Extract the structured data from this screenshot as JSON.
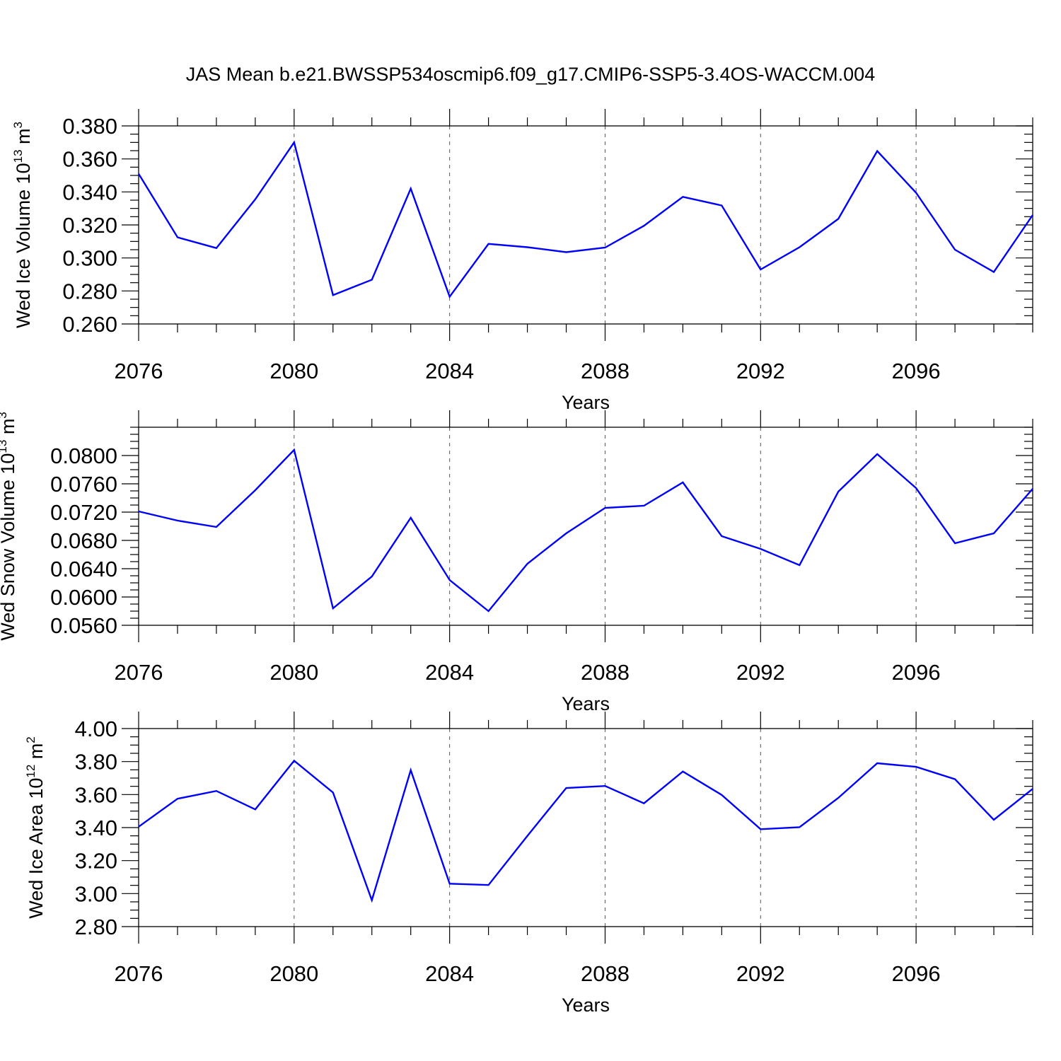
{
  "title": "JAS Mean b.e21.BWSSP534oscmip6.f09_g17.CMIP6-SSP5-3.4OS-WACCM.004",
  "colors": {
    "line": "#0000ff",
    "axis": "#000000",
    "grid": "#555555"
  },
  "chart_data": [
    {
      "type": "line",
      "title": "",
      "xlabel": "Years",
      "ylabel": {
        "main": "Wed Ice Volume 10",
        "exp": "13",
        "unit": " m",
        "unit_exp": "3"
      },
      "xlim": [
        2076,
        2099
      ],
      "ylim": [
        0.26,
        0.38
      ],
      "x_ticks": [
        "2076",
        "2080",
        "2084",
        "2088",
        "2092",
        "2096"
      ],
      "y_ticks": [
        "0.260",
        "0.280",
        "0.300",
        "0.320",
        "0.340",
        "0.360",
        "0.380"
      ],
      "x": [
        2076,
        2077,
        2078,
        2079,
        2080,
        2081,
        2082,
        2083,
        2084,
        2085,
        2086,
        2087,
        2088,
        2089,
        2090,
        2091,
        2092,
        2093,
        2094,
        2095,
        2096,
        2097,
        2098,
        2099
      ],
      "series": [
        {
          "name": "Wed Ice Volume",
          "values": [
            0.351,
            0.3125,
            0.306,
            0.3355,
            0.37,
            0.2775,
            0.2868,
            0.342,
            0.2765,
            0.3085,
            0.3065,
            0.3035,
            0.3063,
            0.3195,
            0.337,
            0.3318,
            0.293,
            0.3065,
            0.3237,
            0.3648,
            0.3395,
            0.305,
            0.2915,
            0.326
          ]
        }
      ]
    },
    {
      "type": "line",
      "title": "",
      "xlabel": "Years",
      "ylabel": {
        "main": "Wed Snow Volume 10",
        "exp": "13",
        "unit": " m",
        "unit_exp": "3"
      },
      "xlim": [
        2076,
        2099
      ],
      "ylim": [
        0.056,
        0.084
      ],
      "x_ticks": [
        "2076",
        "2080",
        "2084",
        "2088",
        "2092",
        "2096"
      ],
      "y_ticks": [
        "0.0560",
        "0.0600",
        "0.0640",
        "0.0680",
        "0.0720",
        "0.0760",
        "0.0800"
      ],
      "x": [
        2076,
        2077,
        2078,
        2079,
        2080,
        2081,
        2082,
        2083,
        2084,
        2085,
        2086,
        2087,
        2088,
        2089,
        2090,
        2091,
        2092,
        2093,
        2094,
        2095,
        2096,
        2097,
        2098,
        2099
      ],
      "series": [
        {
          "name": "Wed Snow Volume",
          "values": [
            0.0721,
            0.0708,
            0.0699,
            0.0751,
            0.0808,
            0.0584,
            0.0629,
            0.0712,
            0.0624,
            0.058,
            0.0647,
            0.069,
            0.0726,
            0.0729,
            0.0762,
            0.0686,
            0.0668,
            0.0645,
            0.0749,
            0.0802,
            0.0754,
            0.0676,
            0.069,
            0.0753
          ]
        }
      ]
    },
    {
      "type": "line",
      "title": "",
      "xlabel": "Years",
      "ylabel": {
        "main": "Wed Ice Area 10",
        "exp": "12",
        "unit": " m",
        "unit_exp": "2"
      },
      "xlim": [
        2076,
        2099
      ],
      "ylim": [
        2.8,
        4.0
      ],
      "x_ticks": [
        "2076",
        "2080",
        "2084",
        "2088",
        "2092",
        "2096"
      ],
      "y_ticks": [
        "2.80",
        "3.00",
        "3.20",
        "3.40",
        "3.60",
        "3.80",
        "4.00"
      ],
      "x": [
        2076,
        2077,
        2078,
        2079,
        2080,
        2081,
        2082,
        2083,
        2084,
        2085,
        2086,
        2087,
        2088,
        2089,
        2090,
        2091,
        2092,
        2093,
        2094,
        2095,
        2096,
        2097,
        2098,
        2099
      ],
      "series": [
        {
          "name": "Wed Ice Area",
          "values": [
            3.405,
            3.575,
            3.622,
            3.51,
            3.805,
            3.612,
            2.96,
            3.748,
            3.06,
            3.052,
            3.35,
            3.64,
            3.652,
            3.547,
            3.74,
            3.598,
            3.39,
            3.402,
            3.58,
            3.79,
            3.768,
            3.693,
            3.447,
            3.635
          ]
        }
      ]
    }
  ]
}
